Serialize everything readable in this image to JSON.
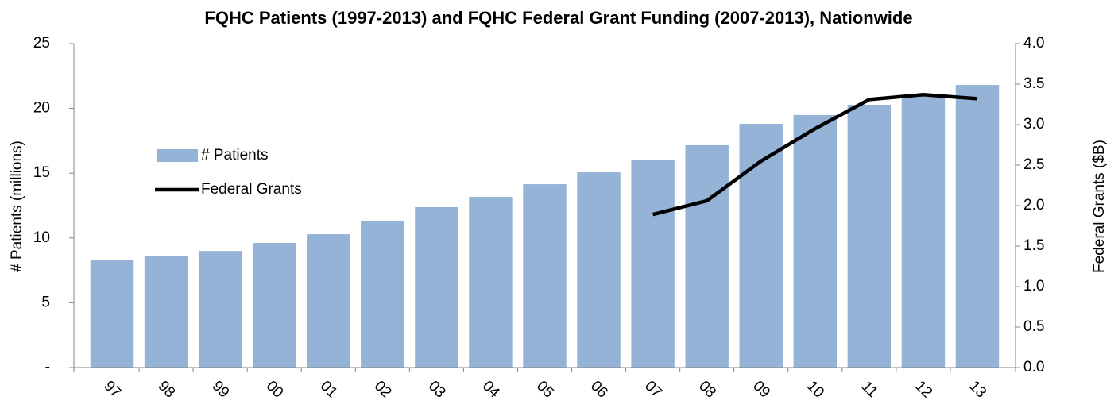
{
  "chart_data": {
    "type": "bar",
    "title": "FQHC Patients (1997-2013) and FQHC Federal Grant Funding (2007-2013), Nationwide",
    "y_label": "# Patients (millions)",
    "y2_label": "Federal Grants ($B)",
    "categories": [
      "97",
      "98",
      "99",
      "00",
      "01",
      "02",
      "03",
      "04",
      "05",
      "06",
      "07",
      "08",
      "09",
      "10",
      "11",
      "12",
      "13"
    ],
    "series": [
      {
        "name": "# Patients",
        "type": "bar",
        "color": "#95b3d7",
        "values": [
          8.27,
          8.64,
          9.0,
          9.62,
          10.29,
          11.34,
          12.38,
          13.17,
          14.15,
          15.07,
          16.05,
          17.16,
          18.81,
          19.49,
          20.28,
          21.0,
          21.81
        ]
      },
      {
        "name": "Federal Grants",
        "type": "line",
        "color": "#000000",
        "axis": "y2",
        "values": [
          null,
          null,
          null,
          null,
          null,
          null,
          null,
          null,
          null,
          null,
          1.89,
          2.06,
          2.55,
          2.95,
          3.31,
          3.37,
          3.32
        ]
      }
    ],
    "ylim": [
      0,
      25
    ],
    "yticks": [
      {
        "value": 0,
        "label": "-"
      },
      5,
      10,
      15,
      20,
      25
    ],
    "y2lim": [
      0,
      4
    ],
    "y2ticks": [
      {
        "value": 0,
        "label": "0.0"
      },
      0.5,
      {
        "value": 1,
        "label": "1.0"
      },
      1.5,
      {
        "value": 2,
        "label": "2.0"
      },
      2.5,
      {
        "value": 3,
        "label": "3.0"
      },
      3.5,
      {
        "value": 4,
        "label": "4.0"
      }
    ],
    "legend": "left",
    "grid": false
  }
}
